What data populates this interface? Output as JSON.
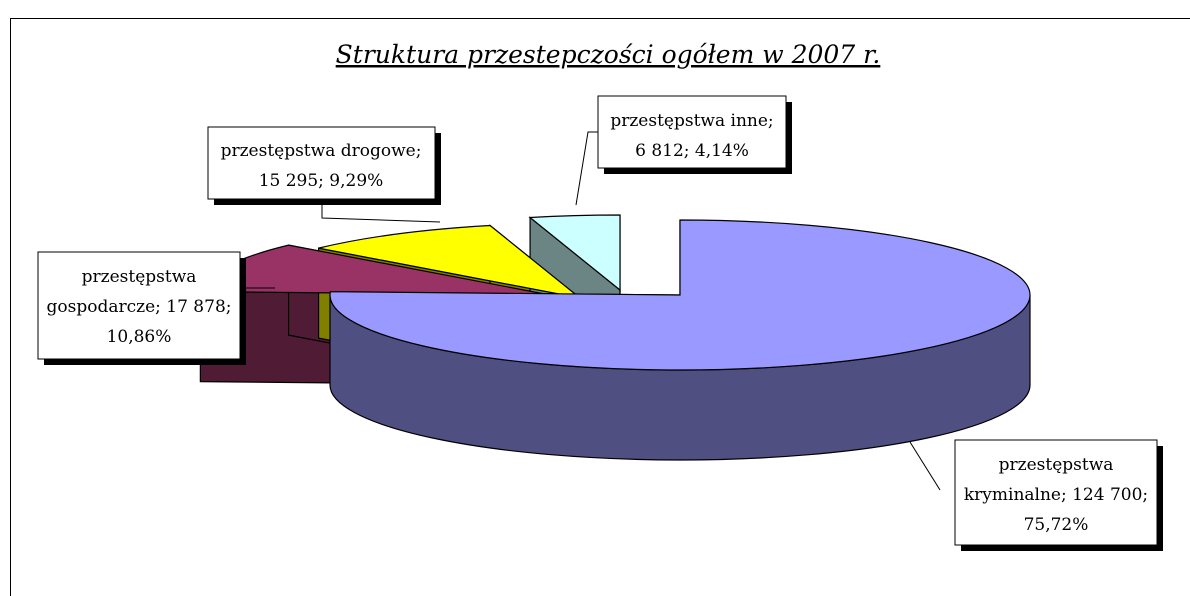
{
  "chart_data": {
    "type": "pie",
    "title": "Struktura przestepczości ogółem w 2007 r.",
    "three_d": true,
    "exploded": true,
    "slices": [
      {
        "name": "przestępstwa kryminalne",
        "value": 124700,
        "percent": 75.72,
        "color": "#9999ff",
        "side_color": "#4f4f82",
        "label_lines": [
          "przestępstwa",
          "kryminalne; 124 700;",
          "75,72%"
        ]
      },
      {
        "name": "przestępstwa gospodarcze",
        "value": 17878,
        "percent": 10.86,
        "color": "#993366",
        "side_color": "#501c35",
        "label_lines": [
          "przestępstwa",
          "gospodarcze; 17 878;",
          "10,86%"
        ]
      },
      {
        "name": "przestępstwa drogowe",
        "value": 15295,
        "percent": 9.29,
        "color": "#ffff00",
        "side_color": "#808000",
        "label_lines": [
          "przestępstwa drogowe;",
          "15 295; 9,29%"
        ]
      },
      {
        "name": "przestępstwa inne",
        "value": 6812,
        "percent": 4.14,
        "color": "#ccffff",
        "side_color": "#6b8585",
        "label_lines": [
          "przestępstwa inne;",
          "6 812; 4,14%"
        ]
      }
    ]
  }
}
